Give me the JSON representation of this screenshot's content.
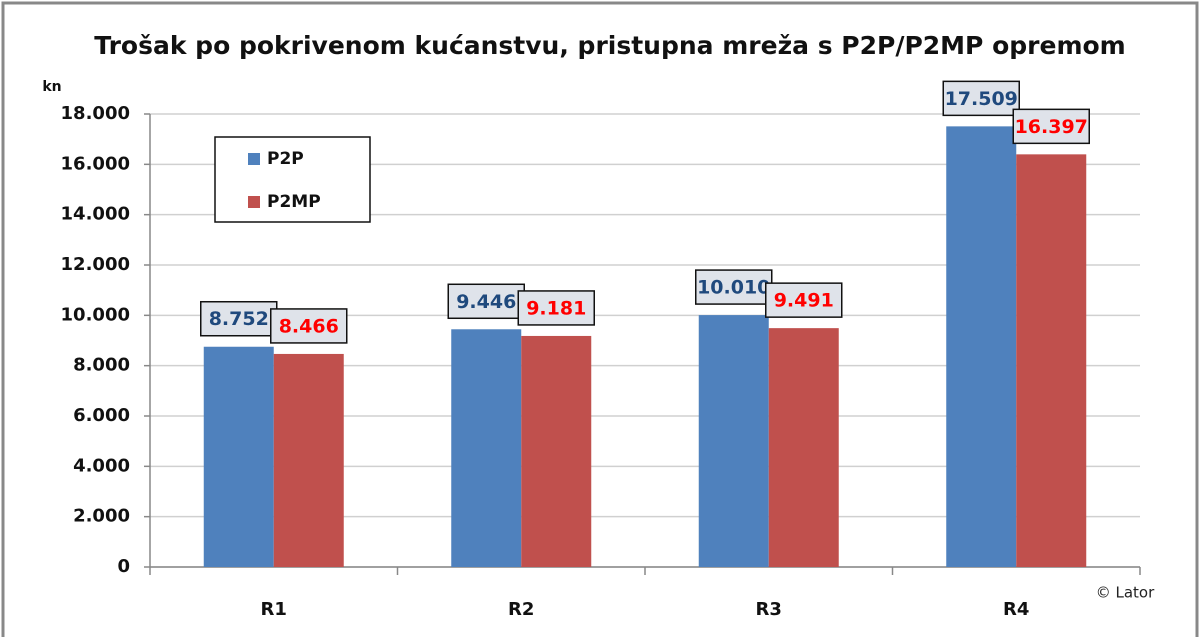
{
  "chart_data": {
    "type": "bar",
    "title": "Trošak po pokrivenom kućanstvu, pristupna mreža s P2P/P2MP opremom",
    "y_label": "kn",
    "annotation": "© Lator",
    "categories": [
      "R1",
      "R2",
      "R3",
      "R4"
    ],
    "series": [
      {
        "name": "P2P",
        "color": "#4f81bd",
        "label_color": "#1f497d",
        "values": [
          8752,
          9446,
          10010,
          17509
        ],
        "value_labels": [
          "8.752",
          "9.446",
          "10.010",
          "17.509"
        ]
      },
      {
        "name": "P2MP",
        "color": "#c0504d",
        "label_color": "#ff0000",
        "values": [
          8466,
          9181,
          9491,
          16397
        ],
        "value_labels": [
          "8.466",
          "9.181",
          "9.491",
          "16.397"
        ]
      }
    ],
    "ylim": [
      0,
      18000
    ],
    "yticks": [
      0,
      {
        "value": 2000,
        "label": "2.000"
      },
      {
        "value": 4000,
        "label": "4.000"
      },
      {
        "value": 6000,
        "label": "6.000"
      },
      {
        "value": 8000,
        "label": "8.000"
      },
      {
        "value": 10000,
        "label": "10.000"
      },
      {
        "value": 12000,
        "label": "12.000"
      },
      {
        "value": 14000,
        "label": "14.000"
      },
      {
        "value": 16000,
        "label": "16.000"
      },
      {
        "value": 18000,
        "label": "18.000"
      }
    ],
    "grid": true,
    "legend": "upper left"
  }
}
